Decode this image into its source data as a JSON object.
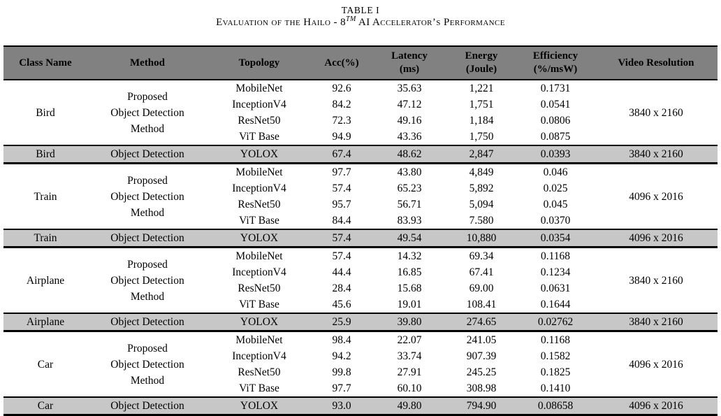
{
  "title": {
    "line1": "TABLE I",
    "caption_prefix": "Evaluation of the Hailo - 8",
    "caption_sup": "TM",
    "caption_suffix": " AI Accelerator’s Performance"
  },
  "colors": {
    "header_bg": "#818181",
    "highlight_row_bg": "#c7c7c7",
    "border": "#000000",
    "text": "#000000"
  },
  "table": {
    "headers": [
      {
        "text": "Class Name"
      },
      {
        "text": "Method"
      },
      {
        "text": "Topology"
      },
      {
        "text": "Acc(%)"
      },
      {
        "text": "Latency\n(ms)"
      },
      {
        "text": "Energy\n(Joule)"
      },
      {
        "text": "Efficiency\n(%/msW)"
      },
      {
        "text": "Video Resolution"
      }
    ],
    "blocks": [
      {
        "class_name": "Bird",
        "method": "Proposed\nObject Detection\nMethod",
        "video_resolution": "3840 x 2160",
        "rows": [
          {
            "topology": "MobileNet",
            "acc": "92.6",
            "latency": "35.63",
            "energy": "1,221",
            "efficiency": "0.1731"
          },
          {
            "topology": "InceptionV4",
            "acc": "84.2",
            "latency": "47.12",
            "energy": "1,751",
            "efficiency": "0.0541"
          },
          {
            "topology": "ResNet50",
            "acc": "72.3",
            "latency": "49.16",
            "energy": "1,184",
            "efficiency": "0.0806"
          },
          {
            "topology": "ViT Base",
            "acc": "94.9",
            "latency": "43.36",
            "energy": "1,750",
            "efficiency": "0.0875"
          }
        ],
        "yolox_row": {
          "class_name": "Bird",
          "method": "Object Detection",
          "topology": "YOLOX",
          "acc": "67.4",
          "latency": "48.62",
          "energy": "2,847",
          "efficiency": "0.0393",
          "video_resolution": "3840 x 2160"
        }
      },
      {
        "class_name": "Train",
        "method": "Proposed\nObject Detection\nMethod",
        "video_resolution": "4096 x 2016",
        "rows": [
          {
            "topology": "MobileNet",
            "acc": "97.7",
            "latency": "43.80",
            "energy": "4,849",
            "efficiency": "0.046"
          },
          {
            "topology": "InceptionV4",
            "acc": "57.4",
            "latency": "65.23",
            "energy": "5,892",
            "efficiency": "0.025"
          },
          {
            "topology": "ResNet50",
            "acc": "95.7",
            "latency": "56.71",
            "energy": "5,094",
            "efficiency": "0.045"
          },
          {
            "topology": "ViT Base",
            "acc": "84.4",
            "latency": "83.93",
            "energy": "7.580",
            "efficiency": "0.0370"
          }
        ],
        "yolox_row": {
          "class_name": "Train",
          "method": "Object Detection",
          "topology": "YOLOX",
          "acc": "57.4",
          "latency": "49.54",
          "energy": "10,880",
          "efficiency": "0.0354",
          "video_resolution": "4096 x 2016"
        }
      },
      {
        "class_name": "Airplane",
        "method": "Proposed\nObject Detection\nMethod",
        "video_resolution": "3840 x 2160",
        "rows": [
          {
            "topology": "MobileNet",
            "acc": "57.4",
            "latency": "14.32",
            "energy": "69.34",
            "efficiency": "0.1168"
          },
          {
            "topology": "InceptionV4",
            "acc": "44.4",
            "latency": "16.85",
            "energy": "67.41",
            "efficiency": "0.1234"
          },
          {
            "topology": "ResNet50",
            "acc": "28.4",
            "latency": "15.68",
            "energy": "69.00",
            "efficiency": "0.0631"
          },
          {
            "topology": "ViT Base",
            "acc": "45.6",
            "latency": "19.01",
            "energy": "108.41",
            "efficiency": "0.1644"
          }
        ],
        "yolox_row": {
          "class_name": "Airplane",
          "method": "Object Detection",
          "topology": "YOLOX",
          "acc": "25.9",
          "latency": "39.80",
          "energy": "274.65",
          "efficiency": "0.02762",
          "video_resolution": "3840 x 2160"
        }
      },
      {
        "class_name": "Car",
        "method": "Proposed\nObject Detection\nMethod",
        "video_resolution": "4096 x 2016",
        "rows": [
          {
            "topology": "MobileNet",
            "acc": "98.4",
            "latency": "22.07",
            "energy": "241.05",
            "efficiency": "0.1168"
          },
          {
            "topology": "InceptionV4",
            "acc": "94.2",
            "latency": "33.74",
            "energy": "907.39",
            "efficiency": "0.1582"
          },
          {
            "topology": "ResNet50",
            "acc": "99.8",
            "latency": "27.91",
            "energy": "245.25",
            "efficiency": "0.1825"
          },
          {
            "topology": "ViT Base",
            "acc": "97.7",
            "latency": "60.10",
            "energy": "308.98",
            "efficiency": "0.1410"
          }
        ],
        "yolox_row": {
          "class_name": "Car",
          "method": "Object Detection",
          "topology": "YOLOX",
          "acc": "93.0",
          "latency": "49.80",
          "energy": "794.90",
          "efficiency": "0.08658",
          "video_resolution": "4096 x 2016"
        }
      }
    ]
  }
}
